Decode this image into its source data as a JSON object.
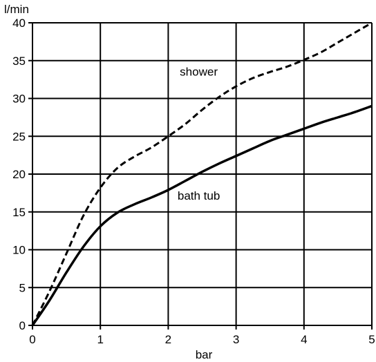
{
  "chart_data": {
    "type": "line",
    "xlabel": "bar",
    "ylabel": "l/min",
    "xlim": [
      0,
      5
    ],
    "ylim": [
      0,
      40
    ],
    "x_ticks": [
      0,
      1,
      2,
      3,
      4,
      5
    ],
    "y_ticks": [
      0,
      5,
      10,
      15,
      20,
      25,
      30,
      35,
      40
    ],
    "x_tick_labels": [
      "0",
      "1",
      "2",
      "3",
      "4",
      "5"
    ],
    "y_tick_labels": [
      "0",
      "5",
      "10",
      "15",
      "20",
      "25",
      "30",
      "35",
      "40"
    ],
    "grid": true,
    "series": [
      {
        "name": "shower",
        "style": "dashed",
        "color": "#000000",
        "x": [
          0,
          0.25,
          0.5,
          0.75,
          1.0,
          1.25,
          1.5,
          1.75,
          2.0,
          2.25,
          2.5,
          2.75,
          3.0,
          3.25,
          3.5,
          3.75,
          4.0,
          4.25,
          4.5,
          4.75,
          5.0
        ],
        "y": [
          0,
          4.5,
          9.5,
          14.5,
          18.2,
          20.8,
          22.3,
          23.5,
          25.0,
          26.6,
          28.5,
          30.2,
          31.6,
          32.7,
          33.5,
          34.2,
          35.1,
          36.1,
          37.4,
          38.7,
          40.0
        ]
      },
      {
        "name": "bath tub",
        "style": "solid",
        "color": "#000000",
        "x": [
          0,
          0.25,
          0.5,
          0.75,
          1.0,
          1.25,
          1.5,
          1.75,
          2.0,
          2.25,
          2.5,
          2.75,
          3.0,
          3.25,
          3.5,
          3.75,
          4.0,
          4.25,
          4.5,
          4.75,
          5.0
        ],
        "y": [
          0,
          3.3,
          7.0,
          10.4,
          13.1,
          14.9,
          16.0,
          16.9,
          17.9,
          19.1,
          20.3,
          21.4,
          22.4,
          23.4,
          24.4,
          25.2,
          26.0,
          26.8,
          27.5,
          28.2,
          29.0
        ]
      }
    ],
    "annotations": [
      {
        "text": "shower",
        "x": 2.45,
        "y": 33.0
      },
      {
        "text": "bath tub",
        "x": 2.45,
        "y": 16.6
      }
    ]
  }
}
